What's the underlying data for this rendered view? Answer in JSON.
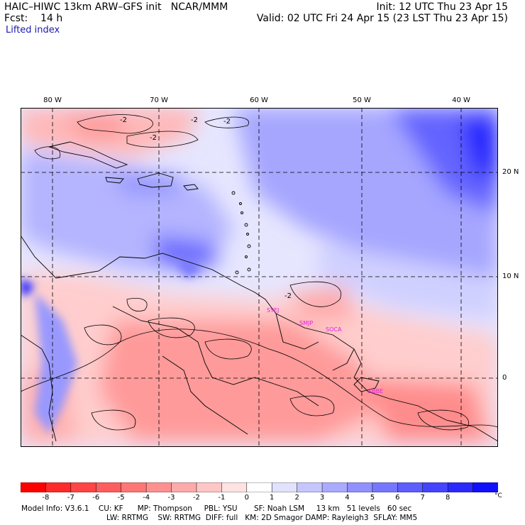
{
  "header": {
    "title": "HAIC–HIWC 13km ARW–GFS init   NCAR/MMM",
    "fcst": "Fcst:    14 h",
    "init": "Init: 12 UTC Thu 23 Apr 15",
    "valid": "Valid: 02 UTC Fri 24 Apr 15 (23 LST Thu 23 Apr 15)",
    "field": "Lifted index"
  },
  "map": {
    "lon_labels": [
      "80 W",
      "70 W",
      "60 W",
      "50 W",
      "40 W"
    ],
    "lat_labels": [
      "20 N",
      "10 N",
      "0"
    ],
    "contour_label": "-2",
    "stations": [
      "SYEJ",
      "SMJP",
      "SOCA",
      "SBBE"
    ]
  },
  "colorbar": {
    "labels": [
      "-8",
      "-7",
      "-6",
      "-5",
      "-4",
      "-3",
      "-2",
      "-1",
      "0",
      "1",
      "2",
      "3",
      "4",
      "5",
      "6",
      "7",
      "8"
    ],
    "unit": "°C",
    "colors": [
      "#ff0000",
      "#ff2a2a",
      "#ff4545",
      "#ff5e5e",
      "#ff7676",
      "#ff9090",
      "#ffaaaa",
      "#ffc6c6",
      "#ffe2e2",
      "#ffffff",
      "#e2e2ff",
      "#c6c6ff",
      "#aaaaff",
      "#9090ff",
      "#7676ff",
      "#5e5eff",
      "#4545ff",
      "#2a2aff",
      "#1010ff"
    ]
  },
  "model_info": {
    "line1": "Model Info: V3.6.1    CU: KF      MP: Thompson     PBL: YSU       SF: Noah LSM     13 km   51 levels   60 sec",
    "line2": "LW: RRTMG    SW: RRTMG  DIFF: full   KM: 2D Smagor DAMP: Rayleigh3  SFLAY: MM5"
  }
}
